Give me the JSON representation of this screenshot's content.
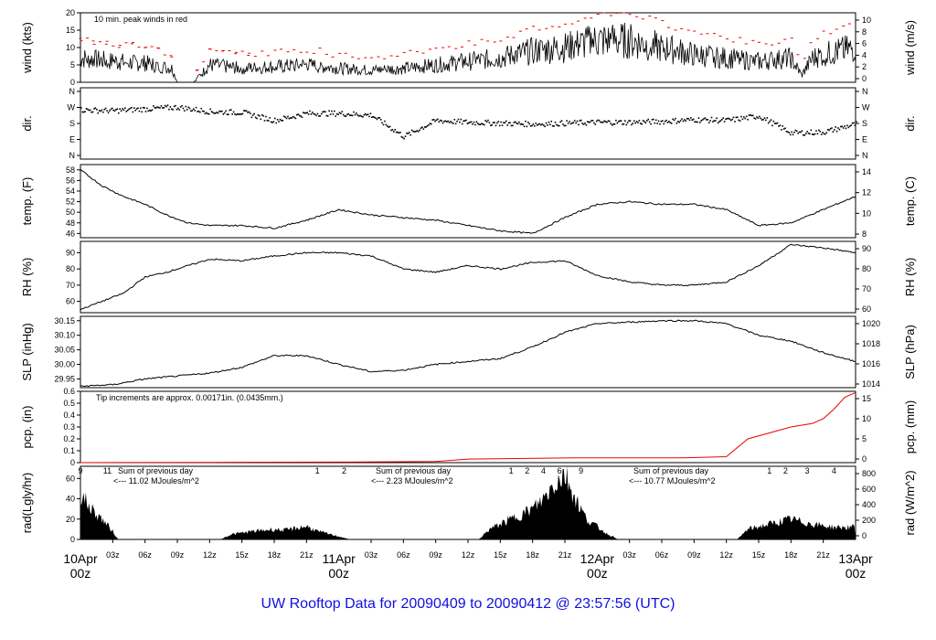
{
  "chart_data": {
    "type": "line",
    "title": "UW Rooftop Data for 20090409  to  20090412 @ 23:57:56  (UTC)",
    "x_ticks": [
      "03z",
      "06z",
      "09z",
      "12z",
      "15z",
      "18z",
      "21z",
      "03z",
      "06z",
      "09z",
      "12z",
      "15z",
      "18z",
      "21z",
      "03z",
      "06z",
      "09z",
      "12z",
      "15z",
      "18z",
      "21z"
    ],
    "day_labels": [
      {
        "top": "10Apr",
        "bottom": "00z"
      },
      {
        "top": "11Apr",
        "bottom": "00z"
      },
      {
        "top": "12Apr",
        "bottom": "00z"
      },
      {
        "top": "13Apr",
        "bottom": "00z"
      }
    ],
    "panels": [
      {
        "id": "wind",
        "left_label": "wind (kts)",
        "right_label": "wind (m/s)",
        "left_ticks": [
          "0",
          "5",
          "10",
          "15",
          "20"
        ],
        "right_ticks": [
          "0",
          "2",
          "4",
          "6",
          "8",
          "10"
        ],
        "ylim": [
          0,
          20
        ],
        "annotation": "10 min. peak winds in red",
        "series": [
          {
            "hours": [
              0,
              3,
              6,
              8.5,
              9,
              10,
              10.5,
              12,
              15,
              18,
              21,
              24,
              27,
              30,
              33,
              36,
              39,
              42,
              45,
              48,
              51,
              54,
              57,
              60,
              63,
              66,
              67,
              68,
              69,
              72
            ],
            "values": [
              7,
              6,
              5.5,
              4,
              0,
              0,
              0,
              5,
              4,
              4.5,
              5,
              4,
              3.5,
              4,
              5,
              6,
              7,
              9,
              10,
              12,
              12,
              10,
              8,
              7,
              6,
              7,
              2,
              7,
              8,
              10
            ]
          }
        ]
      },
      {
        "id": "dir",
        "left_label": "dir.",
        "right_label": "dir.",
        "left_ticks": [
          "N",
          "E",
          "S",
          "W",
          "N"
        ],
        "right_ticks": [
          "N",
          "E",
          "S",
          "W",
          "N"
        ],
        "ylim": [
          0,
          360
        ],
        "series": [
          {
            "hours": [
              0,
              3,
              6,
              9,
              12,
              15,
              18,
              21,
              24,
              27,
              30,
              33,
              36,
              39,
              42,
              45,
              48,
              51,
              54,
              57,
              60,
              63,
              66,
              69,
              72
            ],
            "values": [
              260,
              255,
              265,
              275,
              250,
              245,
              200,
              240,
              240,
              230,
              110,
              200,
              190,
              185,
              180,
              185,
              190,
              190,
              195,
              205,
              200,
              225,
              130,
              135,
              180
            ]
          }
        ]
      },
      {
        "id": "temp",
        "left_label": "temp. (F)",
        "right_label": "temp. (C)",
        "left_ticks": [
          "46",
          "48",
          "50",
          "52",
          "54",
          "56",
          "58"
        ],
        "right_ticks": [
          "8",
          "10",
          "12",
          "14"
        ],
        "ylim": [
          45.2,
          59
        ],
        "series": [
          {
            "hours": [
              0,
              2,
              4,
              6,
              8,
              10,
              12,
              15,
              18,
              21,
              24,
              27,
              30,
              33,
              36,
              39,
              42,
              45,
              48,
              51,
              54,
              57,
              60,
              63,
              66,
              69,
              72
            ],
            "values": [
              58,
              55,
              53,
              51.5,
              49.5,
              48,
              47.5,
              47.5,
              47,
              48.5,
              50.5,
              49.5,
              49,
              48.5,
              47.5,
              46.5,
              46,
              49,
              51.5,
              52,
              51.5,
              51.5,
              50.5,
              47.5,
              48,
              50.5,
              53
            ]
          }
        ]
      },
      {
        "id": "rh",
        "left_label": "RH (%)",
        "right_label": "RH (%)",
        "left_ticks": [
          "60",
          "70",
          "80",
          "90"
        ],
        "right_ticks": [
          "60",
          "70",
          "80",
          "90"
        ],
        "ylim": [
          53,
          97
        ],
        "series": [
          {
            "hours": [
              0,
              2,
              4,
              6,
              8,
              10,
              12,
              15,
              18,
              21,
              24,
              27,
              30,
              33,
              36,
              39,
              42,
              45,
              48,
              51,
              54,
              57,
              60,
              63,
              66,
              69,
              72
            ],
            "values": [
              55,
              60,
              65,
              75,
              78,
              82,
              86,
              85,
              88,
              90,
              90,
              88,
              80,
              78,
              82,
              80,
              84,
              85,
              76,
              72,
              70,
              70,
              72,
              82,
              95,
              93,
              90
            ]
          }
        ]
      },
      {
        "id": "slp",
        "left_label": "SLP (inHg)",
        "right_label": "SLP (hPa)",
        "left_ticks": [
          "29.95",
          "30.00",
          "30.05",
          "30.10",
          "30.15"
        ],
        "right_ticks": [
          "1014",
          "1016",
          "1018",
          "1020"
        ],
        "ylim": [
          29.92,
          30.165
        ],
        "series": [
          {
            "hours": [
              0,
              3,
              6,
              9,
              12,
              15,
              18,
              21,
              24,
              27,
              30,
              33,
              36,
              39,
              42,
              45,
              48,
              51,
              54,
              57,
              60,
              63,
              66,
              69,
              72
            ],
            "values": [
              29.925,
              29.93,
              29.95,
              29.96,
              29.97,
              29.99,
              30.03,
              30.03,
              30.0,
              29.975,
              29.98,
              30.0,
              30.01,
              30.02,
              30.06,
              30.11,
              30.14,
              30.145,
              30.15,
              30.15,
              30.14,
              30.1,
              30.08,
              30.04,
              30.01
            ]
          }
        ]
      },
      {
        "id": "pcp",
        "left_label": "pcp. (in)",
        "right_label": "pcp. (mm)",
        "left_ticks": [
          "0",
          "0.1",
          "0.2",
          "0.3",
          "0.4",
          "0.5",
          "0.6"
        ],
        "right_ticks": [
          "0",
          "5",
          "10",
          "15"
        ],
        "ylim": [
          0,
          0.6
        ],
        "annotation": "Tip increments are approx. 0.00171in. (0.0435mm.)",
        "series": [
          {
            "hours": [
              0,
              12,
              24,
              33,
              36,
              46,
              56,
              60,
              62,
              64,
              66,
              68,
              69,
              70,
              71,
              72
            ],
            "values": [
              0,
              0.002,
              0.005,
              0.01,
              0.03,
              0.04,
              0.04,
              0.05,
              0.2,
              0.25,
              0.3,
              0.33,
              0.37,
              0.45,
              0.55,
              0.59
            ]
          }
        ]
      },
      {
        "id": "rad",
        "left_label": "rad(Lgly/hr)",
        "right_label": "rad (W/m^2)",
        "left_ticks": [
          "0",
          "20",
          "40",
          "60"
        ],
        "right_ticks": [
          "0",
          "200",
          "400",
          "600",
          "800"
        ],
        "ylim": [
          0,
          72
        ],
        "series": [
          {
            "hours": [
              0,
              1,
              2,
              3,
              3.5,
              13,
              14,
              16,
              18,
              19,
              21,
              22,
              24,
              25,
              26,
              37,
              38,
              40,
              42,
              43,
              44,
              45,
              46,
              47,
              49,
              50,
              61,
              62,
              64,
              66,
              68,
              70,
              72
            ],
            "values": [
              45,
              30,
              20,
              8,
              0,
              0,
              5,
              8,
              10,
              9,
              13,
              8,
              3,
              0,
              0,
              0,
              10,
              20,
              30,
              40,
              55,
              65,
              40,
              20,
              5,
              0,
              0,
              10,
              15,
              20,
              15,
              12,
              12
            ]
          }
        ],
        "day_totals": [
          {
            "text": "Sum of previous day",
            "value": "<--- 11.02 MJoules/m^2"
          },
          {
            "text": "Sum of previous day",
            "value": "<--- 2.23 MJoules/m^2"
          },
          {
            "text": "Sum of previous day",
            "value": "<--- 10.77 MJoules/m^2"
          }
        ],
        "top_numbers": [
          {
            "h": 0,
            "t": "9"
          },
          {
            "h": 2.5,
            "t": "11"
          },
          {
            "h": 22,
            "t": "1"
          },
          {
            "h": 24.5,
            "t": "2"
          },
          {
            "h": 40,
            "t": "1"
          },
          {
            "h": 41.5,
            "t": "2"
          },
          {
            "h": 43,
            "t": "4"
          },
          {
            "h": 44.5,
            "t": "6"
          },
          {
            "h": 46.5,
            "t": "9"
          },
          {
            "h": 64,
            "t": "1"
          },
          {
            "h": 65.5,
            "t": "2"
          },
          {
            "h": 67.5,
            "t": "3"
          },
          {
            "h": 70,
            "t": "4"
          }
        ]
      }
    ]
  },
  "footer": "UW Rooftop Data for 20090409  to  20090412 @ 23:57:56  (UTC)"
}
